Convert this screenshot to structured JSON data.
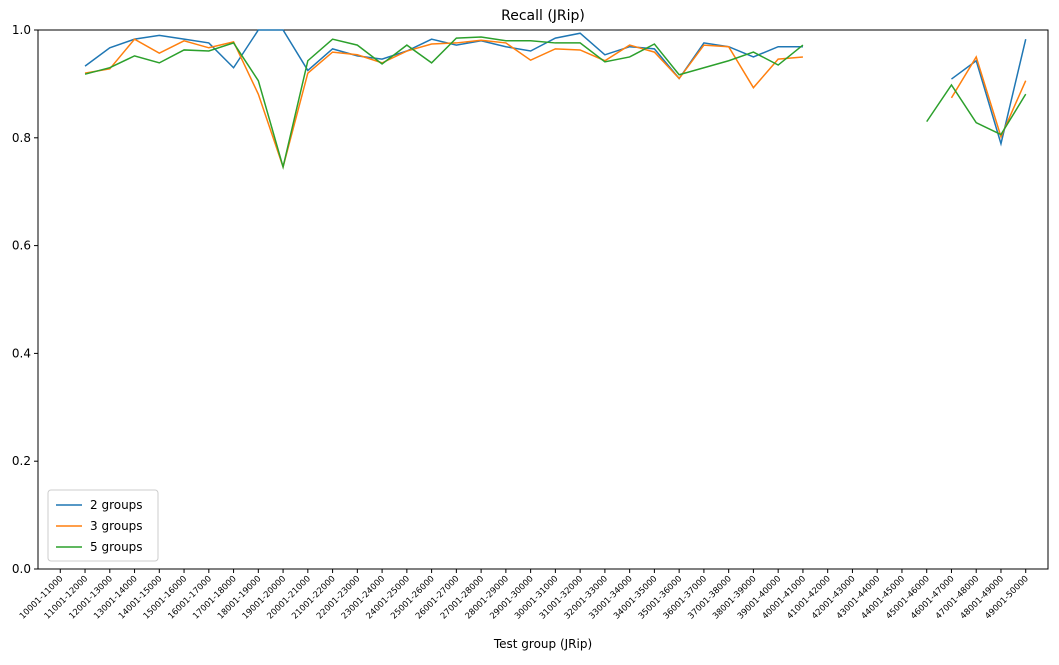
{
  "chart_data": {
    "type": "line",
    "title": "Recall (JRip)",
    "xlabel": "Test group (JRip)",
    "categories": [
      "10001-11000",
      "11001-12000",
      "12001-13000",
      "13001-14000",
      "14001-15000",
      "15001-16000",
      "16001-17000",
      "17001-18000",
      "18001-19000",
      "19001-20000",
      "20001-21000",
      "21001-22000",
      "22001-23000",
      "23001-24000",
      "24001-25000",
      "25001-26000",
      "26001-27000",
      "27001-28000",
      "28001-29000",
      "29001-30000",
      "30001-31000",
      "31001-32000",
      "32001-33000",
      "33001-34000",
      "34001-35000",
      "35001-36000",
      "36001-37000",
      "37001-38000",
      "38001-39000",
      "39001-40000",
      "40001-41000",
      "41001-42000",
      "42001-43000",
      "43001-44000",
      "44001-45000",
      "45001-46000",
      "46001-47000",
      "47001-48000",
      "48001-49000",
      "49001-50000"
    ],
    "series": [
      {
        "name": "2 groups",
        "color": "#1f77b4",
        "values": [
          null,
          0.933,
          0.967,
          0.983,
          0.99,
          0.983,
          0.976,
          0.93,
          1.0,
          1.0,
          0.925,
          0.965,
          0.952,
          0.946,
          0.961,
          0.983,
          0.972,
          0.98,
          0.969,
          0.961,
          0.985,
          0.994,
          0.954,
          0.969,
          0.965,
          0.91,
          0.976,
          0.969,
          0.95,
          0.969,
          0.969,
          null,
          null,
          null,
          null,
          null,
          0.909,
          0.943,
          0.789,
          0.983
        ]
      },
      {
        "name": "3 groups",
        "color": "#ff7f0e",
        "values": [
          null,
          0.92,
          0.928,
          0.983,
          0.957,
          0.98,
          0.967,
          0.978,
          0.881,
          0.746,
          0.92,
          0.959,
          0.954,
          0.939,
          0.961,
          0.974,
          0.976,
          0.981,
          0.976,
          0.944,
          0.965,
          0.963,
          0.943,
          0.972,
          0.959,
          0.91,
          0.972,
          0.969,
          0.893,
          0.946,
          0.95,
          null,
          null,
          null,
          null,
          null,
          0.874,
          0.95,
          0.802,
          0.906
        ]
      },
      {
        "name": "5 groups",
        "color": "#2ca02c",
        "values": [
          null,
          0.918,
          0.93,
          0.952,
          0.939,
          0.963,
          0.961,
          0.976,
          0.906,
          0.746,
          0.943,
          0.983,
          0.972,
          0.937,
          0.972,
          0.939,
          0.985,
          0.987,
          0.98,
          0.98,
          0.976,
          0.976,
          0.941,
          0.95,
          0.974,
          0.917,
          0.93,
          0.943,
          0.959,
          0.935,
          0.972,
          null,
          null,
          null,
          null,
          0.83,
          0.898,
          0.828,
          0.806,
          0.881
        ]
      }
    ],
    "ylim": [
      0,
      1
    ],
    "yticks": [
      {
        "value": 0,
        "label": "0.0"
      },
      {
        "value": 0.2,
        "label": "0.2"
      },
      {
        "value": 0.4,
        "label": "0.4"
      },
      {
        "value": 0.6,
        "label": "0.6"
      },
      {
        "value": 0.8,
        "label": "0.8"
      },
      {
        "value": 1,
        "label": "1.0"
      }
    ],
    "legend": "lower left",
    "grid": false
  }
}
